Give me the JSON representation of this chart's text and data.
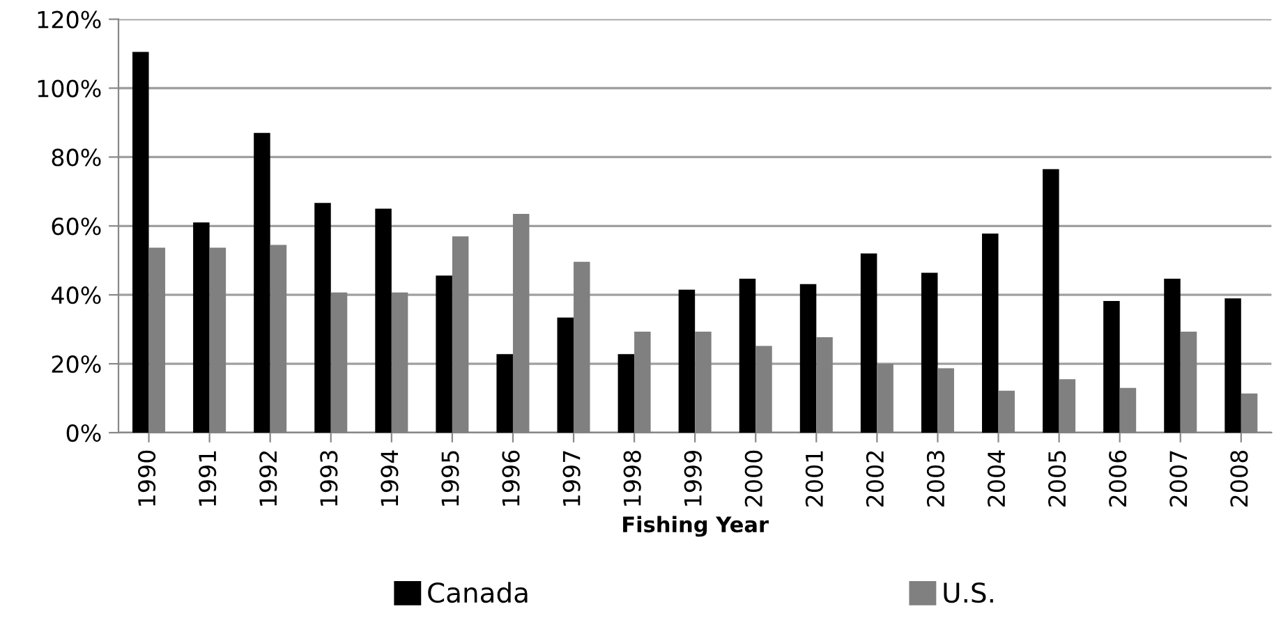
{
  "chart_data": {
    "type": "bar",
    "xlabel": "Fishing Year",
    "categories": [
      "1990",
      "1991",
      "1992",
      "1993",
      "1994",
      "1995",
      "1996",
      "1997",
      "1998",
      "1999",
      "2000",
      "2001",
      "2002",
      "2003",
      "2004",
      "2005",
      "2006",
      "2007",
      "2008"
    ],
    "series": [
      {
        "name": "Canada",
        "color": "#000000",
        "values": [
          110.5,
          61,
          87,
          66.7,
          65,
          45.6,
          22.8,
          33.4,
          22.8,
          41.5,
          44.7,
          43.1,
          52,
          46.4,
          57.8,
          76.5,
          38.2,
          44.7,
          39
        ]
      },
      {
        "name": "U.S.",
        "color": "#808080",
        "values": [
          53.7,
          53.7,
          54.5,
          40.7,
          40.7,
          57,
          63.5,
          49.6,
          29.3,
          29.3,
          25.2,
          27.7,
          20,
          18.7,
          12.2,
          15.5,
          13,
          29.3,
          11.4
        ]
      }
    ],
    "ylim": [
      0,
      120
    ],
    "yticks": [
      {
        "value": 0,
        "label": "0%"
      },
      {
        "value": 20,
        "label": "20%"
      },
      {
        "value": 40,
        "label": "40%"
      },
      {
        "value": 60,
        "label": "60%"
      },
      {
        "value": 80,
        "label": "80%"
      },
      {
        "value": 100,
        "label": "100%"
      },
      {
        "value": 120,
        "label": "120%"
      }
    ],
    "grid": "y",
    "legend": "bottom"
  }
}
